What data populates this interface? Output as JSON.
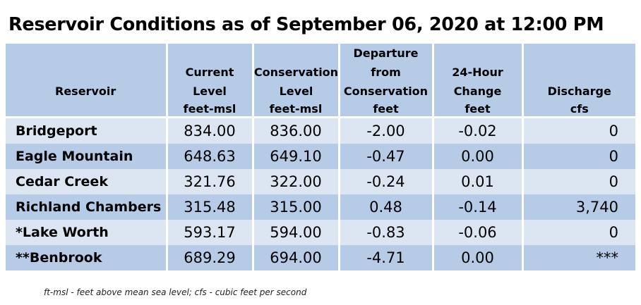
{
  "title": "Reservoir Conditions as of September 06, 2020 at 12:00 PM",
  "table": {
    "headers": [
      {
        "label": "Reservoir",
        "unit": ""
      },
      {
        "label": "Current Level",
        "unit": "feet-msl"
      },
      {
        "label": "Conservation Level",
        "unit": "feet-msl"
      },
      {
        "label": "Departure from Conservation",
        "unit": "feet"
      },
      {
        "label": "24-Hour Change",
        "unit": "feet"
      },
      {
        "label": "Discharge",
        "unit": "cfs"
      }
    ],
    "rows": [
      {
        "reservoir": "Bridgeport",
        "current": "834.00",
        "conservation": "836.00",
        "departure": "-2.00",
        "change": "-0.02",
        "discharge": "0"
      },
      {
        "reservoir": "Eagle Mountain",
        "current": "648.63",
        "conservation": "649.10",
        "departure": "-0.47",
        "change": "0.00",
        "discharge": "0"
      },
      {
        "reservoir": "Cedar Creek",
        "current": "321.76",
        "conservation": "322.00",
        "departure": "-0.24",
        "change": "0.01",
        "discharge": "0"
      },
      {
        "reservoir": "Richland Chambers",
        "current": "315.48",
        "conservation": "315.00",
        "departure": "0.48",
        "change": "-0.14",
        "discharge": "3,740"
      },
      {
        "reservoir": "*Lake Worth",
        "current": "593.17",
        "conservation": "594.00",
        "departure": "-0.83",
        "change": "-0.06",
        "discharge": "0"
      },
      {
        "reservoir": "**Benbrook",
        "current": "689.29",
        "conservation": "694.00",
        "departure": "-4.71",
        "change": "0.00",
        "discharge": "***"
      }
    ]
  },
  "footnote": "ft-msl - feet above mean sea level; cfs - cubic feet per second",
  "colors": {
    "header_bg": "#b6cbe5",
    "row_light": "#dce6f2",
    "row_dark": "#b6cbe5"
  }
}
